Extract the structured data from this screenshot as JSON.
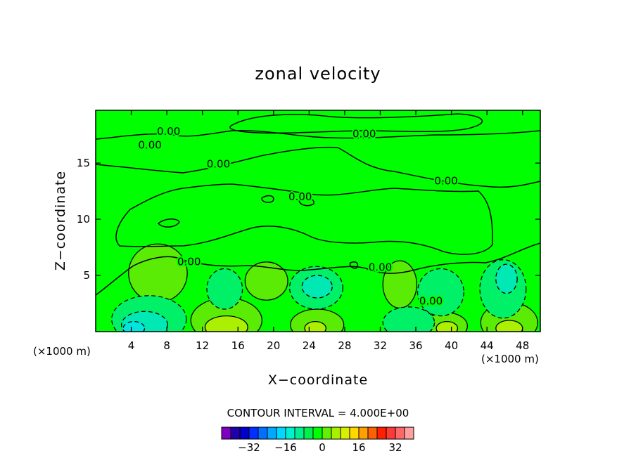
{
  "chart_data": {
    "type": "contour",
    "title": "zonal velocity",
    "xlabel": "X−coordinate",
    "ylabel": "Z−coordinate",
    "x_unit_left": "(×1000 m)",
    "x_unit_right": "(×1000 m)",
    "xlim": [
      0,
      50
    ],
    "ylim": [
      0,
      19.7
    ],
    "x_ticks": [
      4,
      8,
      12,
      16,
      20,
      24,
      28,
      32,
      36,
      40,
      44,
      48
    ],
    "y_ticks": [
      5,
      10,
      15
    ],
    "contour_interval_text": "CONTOUR INTERVAL =  4.000E+00",
    "background_color": "#00ff00",
    "contour_labels": [
      {
        "text": "0.00",
        "x": 8.2,
        "y": 17.5
      },
      {
        "text": "0.00",
        "x": 6.1,
        "y": 16.3
      },
      {
        "text": "0.00",
        "x": 30.2,
        "y": 17.3
      },
      {
        "text": "0.00",
        "x": 13.8,
        "y": 14.6
      },
      {
        "text": "0.00",
        "x": 39.4,
        "y": 13.1
      },
      {
        "text": "0.00",
        "x": 23.0,
        "y": 11.7
      },
      {
        "text": "0.00",
        "x": 10.5,
        "y": 5.9
      },
      {
        "text": "0.00",
        "x": 32.0,
        "y": 5.4
      },
      {
        "text": "0.00",
        "x": 37.7,
        "y": 2.4
      }
    ],
    "regions": [
      {
        "value": 4,
        "color": "#5aec05",
        "cx": 7.0,
        "cy": 5.2,
        "rx": 3.3,
        "ry": 2.6
      },
      {
        "value": 4,
        "color": "#5aec05",
        "cx": 19.2,
        "cy": 4.5,
        "rx": 2.4,
        "ry": 1.7
      },
      {
        "value": 4,
        "color": "#5aec05",
        "cx": 34.2,
        "cy": 4.2,
        "rx": 1.9,
        "ry": 2.1
      },
      {
        "value": 4,
        "color": "#5aec05",
        "cx": 14.7,
        "cy": 1.0,
        "rx": 4.0,
        "ry": 2.0
      },
      {
        "value": 4,
        "color": "#5aec05",
        "cx": 24.9,
        "cy": 0.6,
        "rx": 3.0,
        "ry": 1.4
      },
      {
        "value": 4,
        "color": "#5aec05",
        "cx": 39.4,
        "cy": 0.5,
        "rx": 2.4,
        "ry": 1.2
      },
      {
        "value": 4,
        "color": "#5aec05",
        "cx": 46.5,
        "cy": 0.8,
        "rx": 3.2,
        "ry": 1.8
      },
      {
        "value": 8,
        "color": "#aaf000",
        "cx": 14.7,
        "cy": 0.4,
        "rx": 2.4,
        "ry": 1.0
      },
      {
        "value": 8,
        "color": "#aaf000",
        "cx": 24.7,
        "cy": 0.3,
        "rx": 1.2,
        "ry": 0.6
      },
      {
        "value": 8,
        "color": "#aaf000",
        "cx": 39.5,
        "cy": 0.3,
        "rx": 1.2,
        "ry": 0.6
      },
      {
        "value": 8,
        "color": "#aaf000",
        "cx": 46.5,
        "cy": 0.3,
        "rx": 1.5,
        "ry": 0.7
      },
      {
        "value": -4,
        "color": "#00f068",
        "cx": 14.5,
        "cy": 3.8,
        "rx": 2.0,
        "ry": 1.8
      },
      {
        "value": -4,
        "color": "#00f068",
        "cx": 24.8,
        "cy": 3.9,
        "rx": 3.0,
        "ry": 1.9
      },
      {
        "value": -4,
        "color": "#00f068",
        "cx": 38.8,
        "cy": 3.5,
        "rx": 2.6,
        "ry": 2.1
      },
      {
        "value": -4,
        "color": "#00f068",
        "cx": 45.8,
        "cy": 3.8,
        "rx": 2.6,
        "ry": 2.6
      },
      {
        "value": -4,
        "color": "#00f068",
        "cx": 6.0,
        "cy": 1.1,
        "rx": 4.2,
        "ry": 2.1
      },
      {
        "value": -4,
        "color": "#00f068",
        "cx": 35.2,
        "cy": 0.8,
        "rx": 2.9,
        "ry": 1.4
      },
      {
        "value": -8,
        "color": "#00e8b4",
        "cx": 24.9,
        "cy": 4.0,
        "rx": 1.7,
        "ry": 1.0
      },
      {
        "value": -8,
        "color": "#00e8b4",
        "cx": 46.2,
        "cy": 4.7,
        "rx": 1.2,
        "ry": 1.3
      },
      {
        "value": -8,
        "color": "#00e8b4",
        "cx": 5.5,
        "cy": 0.6,
        "rx": 2.6,
        "ry": 1.2
      },
      {
        "value": -12,
        "color": "#00e6de",
        "cx": 4.3,
        "cy": 0.3,
        "rx": 1.2,
        "ry": 0.6
      }
    ],
    "colorbar": {
      "colors": [
        "#8000c0",
        "#2000a8",
        "#0000c8",
        "#0030ff",
        "#0070ff",
        "#00a8ff",
        "#00d8ff",
        "#00f0d0",
        "#00f090",
        "#00f050",
        "#00ff00",
        "#60f000",
        "#a8f000",
        "#d8f000",
        "#ffd800",
        "#ffa000",
        "#ff6000",
        "#ff2000",
        "#ff3838",
        "#ff6868",
        "#ffa0a0"
      ],
      "tick_labels": [
        {
          "text": "−32",
          "index": 3
        },
        {
          "text": "−16",
          "index": 7
        },
        {
          "text": "0",
          "index": 11
        },
        {
          "text": "16",
          "index": 15
        },
        {
          "text": "32",
          "index": 19
        }
      ]
    }
  }
}
